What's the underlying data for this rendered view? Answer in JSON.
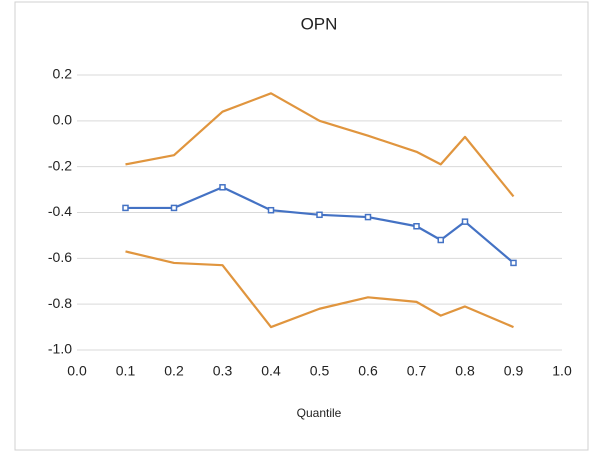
{
  "chart_data": {
    "type": "line",
    "title": "OPN",
    "x_label": "Quantile",
    "x": [
      0.1,
      0.2,
      0.3,
      0.4,
      0.5,
      0.6,
      0.7,
      0.75,
      0.8,
      0.9
    ],
    "series": [
      {
        "color": "#4472c4",
        "marker": true,
        "values": [
          -0.38,
          -0.38,
          -0.29,
          -0.39,
          -0.41,
          -0.42,
          -0.46,
          -0.52,
          -0.44,
          -0.62
        ]
      },
      {
        "color": "#e0953e",
        "marker": false,
        "values": [
          -0.19,
          -0.15,
          0.04,
          0.12,
          0.0,
          -0.065,
          -0.135,
          -0.19,
          -0.07,
          -0.33
        ]
      },
      {
        "color": "#e0953e",
        "marker": false,
        "values": [
          -0.57,
          -0.62,
          -0.63,
          -0.9,
          -0.82,
          -0.77,
          -0.79,
          -0.85,
          -0.81,
          -0.9
        ]
      }
    ],
    "xlim": [
      0,
      1
    ],
    "xticks": [
      {
        "value": 0,
        "label": "0.0"
      },
      0.1,
      0.2,
      0.3,
      0.4,
      0.5,
      0.6,
      0.7,
      0.8,
      0.9,
      {
        "value": 1,
        "label": "1.0"
      }
    ],
    "ylim": [
      -1,
      0.2
    ],
    "yticks": [
      0.2,
      {
        "value": 0,
        "label": "0.0"
      },
      -0.2,
      -0.4,
      -0.6,
      -0.8,
      {
        "value": -1,
        "label": "-1.0"
      }
    ],
    "grid": true
  }
}
